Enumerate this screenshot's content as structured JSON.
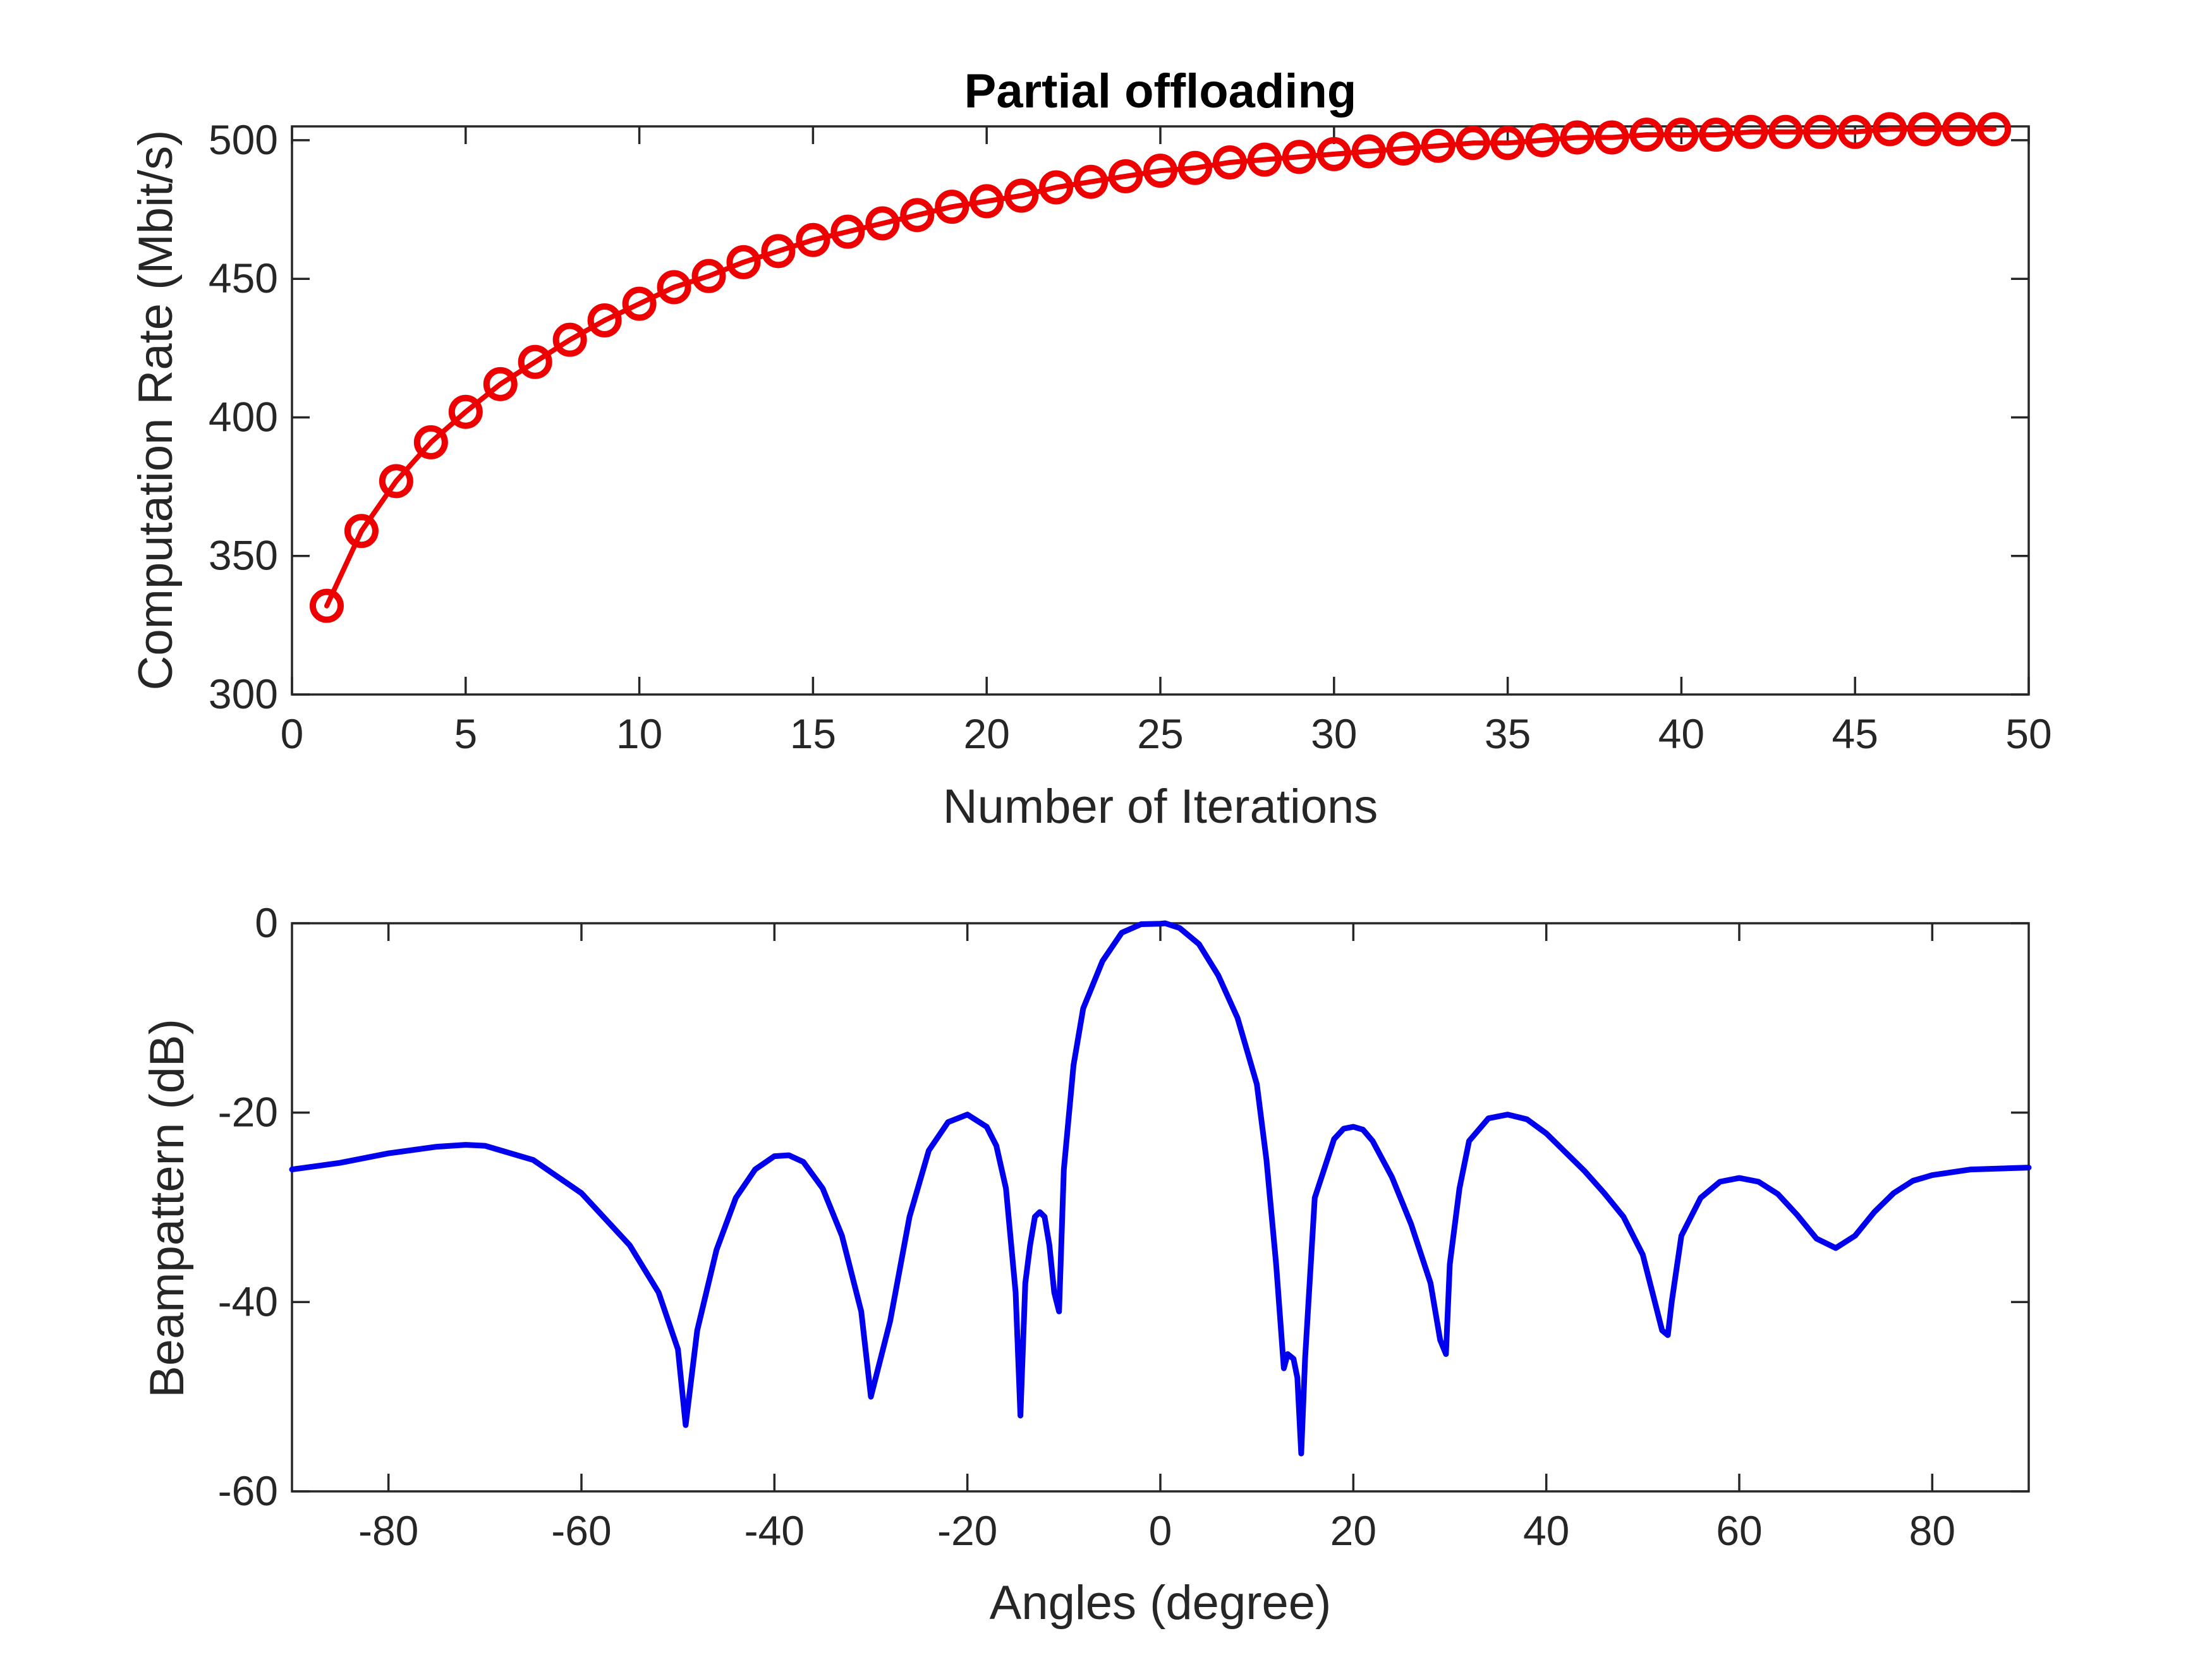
{
  "chart_data": [
    {
      "type": "line",
      "title": "Partial offloading",
      "xlabel": "Number of Iterations",
      "ylabel": "Computation Rate (Mbit/s)",
      "xlim": [
        0,
        50
      ],
      "ylim": [
        300,
        505
      ],
      "xticks": [
        0,
        5,
        10,
        15,
        20,
        25,
        30,
        35,
        40,
        45,
        50
      ],
      "yticks": [
        300,
        350,
        400,
        450,
        500
      ],
      "grid": false,
      "line_color": "#ee0000",
      "marker": "circle",
      "x": [
        1,
        2,
        3,
        4,
        5,
        6,
        7,
        8,
        9,
        10,
        11,
        12,
        13,
        14,
        15,
        16,
        17,
        18,
        19,
        20,
        21,
        22,
        23,
        24,
        25,
        26,
        27,
        28,
        29,
        30,
        31,
        32,
        33,
        34,
        35,
        36,
        37,
        38,
        39,
        40,
        41,
        42,
        43,
        44,
        45,
        46,
        47,
        48,
        49
      ],
      "y": [
        332,
        359,
        377,
        391,
        402,
        412,
        420,
        428,
        435,
        441,
        447,
        451,
        456,
        460,
        464,
        467,
        470,
        473,
        476,
        478,
        480,
        483,
        485,
        487,
        489,
        490,
        492,
        493,
        494,
        495,
        496,
        497,
        498,
        499,
        499,
        500,
        501,
        501,
        502,
        502,
        502,
        503,
        503,
        503,
        503,
        504,
        504,
        504,
        504
      ]
    },
    {
      "type": "line",
      "title": "",
      "xlabel": "Angles (degree)",
      "ylabel": "Beampattern (dB)",
      "xlim": [
        -90,
        90
      ],
      "ylim": [
        -60,
        0
      ],
      "xticks": [
        -80,
        -60,
        -40,
        -20,
        0,
        20,
        40,
        60,
        80
      ],
      "yticks": [
        0,
        -20,
        -40,
        -60
      ],
      "grid": false,
      "line_color": "#0000ee",
      "x": [
        -90,
        -85,
        -80,
        -75,
        -72,
        -70,
        -65,
        -60,
        -55,
        -52,
        -50,
        -49.2,
        -48,
        -46,
        -44,
        -42,
        -40,
        -38.5,
        -37,
        -35,
        -33,
        -31,
        -30,
        -29,
        -28,
        -26,
        -24,
        -22,
        -20,
        -18,
        -17,
        -16,
        -15,
        -14.5,
        -14,
        -13.5,
        -13,
        -12.5,
        -12,
        -11.5,
        -11,
        -10.5,
        -10,
        -9,
        -8,
        -6,
        -4,
        -2,
        0,
        0.5,
        2,
        4,
        6,
        8,
        10,
        11,
        12,
        12.8,
        13.2,
        13.8,
        14.2,
        14.6,
        15,
        16,
        18,
        19,
        20,
        21,
        22,
        24,
        26,
        28,
        29,
        29.6,
        30,
        31,
        32,
        34,
        36,
        38,
        40,
        42,
        44,
        46,
        48,
        50,
        51,
        52,
        52.6,
        53,
        54,
        56,
        58,
        60,
        62,
        64,
        66,
        68,
        70,
        72,
        74,
        76,
        78,
        80,
        84,
        90
      ],
      "y": [
        -26,
        -25.3,
        -24.3,
        -23.6,
        -23.4,
        -23.5,
        -25,
        -28.5,
        -34,
        -39,
        -45,
        -53,
        -43,
        -34.5,
        -29,
        -26,
        -24.6,
        -24.5,
        -25.2,
        -28,
        -33,
        -41,
        -50,
        -46,
        -42,
        -31,
        -24,
        -21,
        -20.2,
        -21.5,
        -23.5,
        -28,
        -39,
        -52,
        -38,
        -34,
        -31,
        -30.5,
        -31,
        -34,
        -39,
        -41,
        -26,
        -15,
        -9,
        -4,
        -1,
        -0.1,
        -0.05,
        0,
        -0.5,
        -2.2,
        -5.5,
        -10,
        -17,
        -25,
        -36,
        -47,
        -45.5,
        -46,
        -48,
        -56,
        -46,
        -29,
        -22.8,
        -21.7,
        -21.5,
        -21.8,
        -23,
        -26.8,
        -31.8,
        -38,
        -44,
        -45.5,
        -36,
        -28,
        -23,
        -20.6,
        -20.2,
        -20.7,
        -22.2,
        -24.2,
        -26.2,
        -28.5,
        -31,
        -35,
        -39,
        -43,
        -43.5,
        -40,
        -33,
        -29,
        -27.3,
        -26.9,
        -27.3,
        -28.6,
        -30.8,
        -33.3,
        -34.3,
        -33,
        -30.5,
        -28.5,
        -27.2,
        -26.6,
        -26,
        -25.8
      ]
    }
  ]
}
